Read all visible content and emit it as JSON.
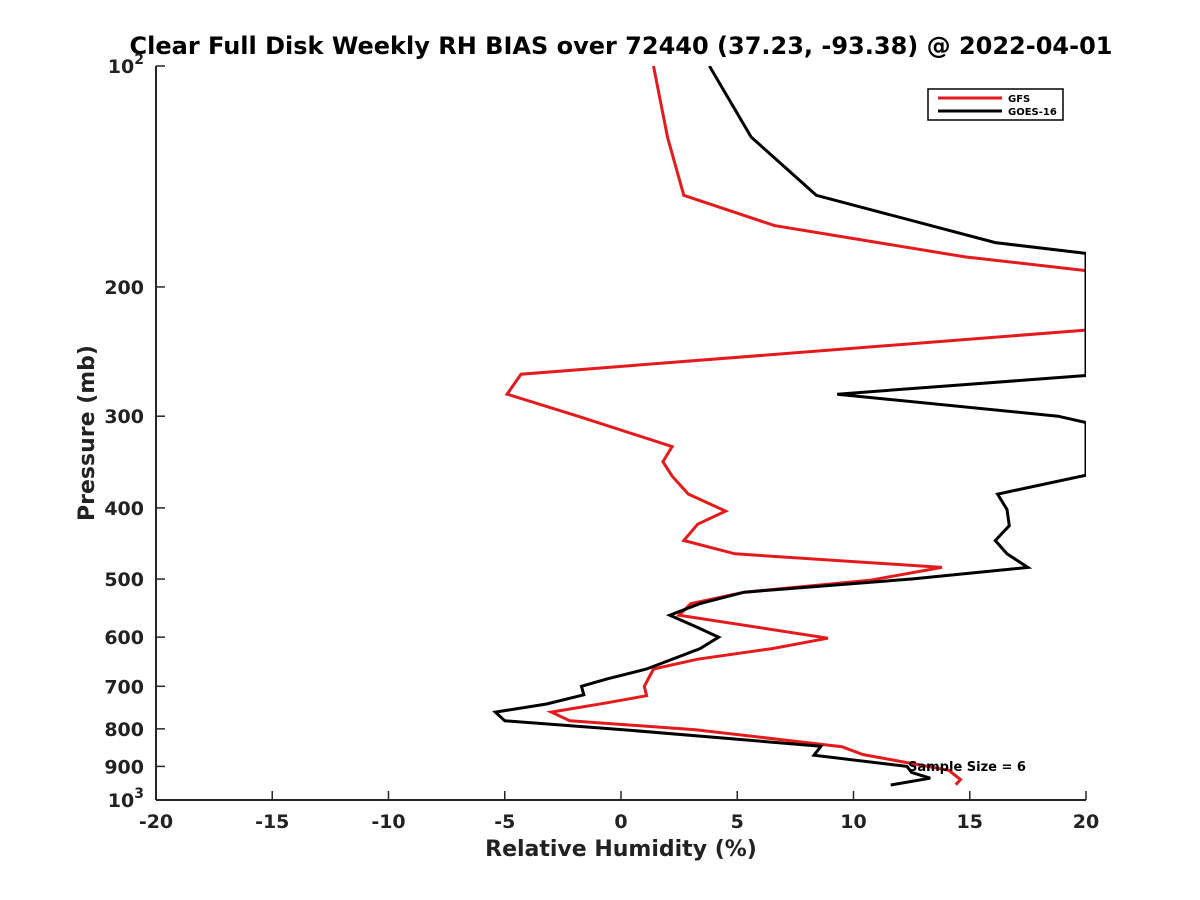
{
  "chart_data": {
    "type": "line",
    "title": "Clear Full Disk Weekly RH BIAS over 72440 (37.23, -93.38) @ 2022-04-01",
    "xlabel": "Relative Humidity (%)",
    "ylabel": "Pressure (mb)",
    "xlim": [
      -20,
      20
    ],
    "ylim": [
      100,
      1000
    ],
    "yscale": "log",
    "y_reversed": true,
    "x_ticks": [
      -20,
      -15,
      -10,
      -5,
      0,
      5,
      10,
      15,
      20
    ],
    "x_tick_labels": [
      "-20",
      "-15",
      "-10",
      "-5",
      "0",
      "5",
      "10",
      "15",
      "20"
    ],
    "y_ticks": [
      100,
      200,
      300,
      400,
      500,
      600,
      700,
      800,
      900,
      1000
    ],
    "y_tick_labels": [
      {
        "base": "10",
        "sup": "2"
      },
      {
        "base": "200",
        "sup": ""
      },
      {
        "base": "300",
        "sup": ""
      },
      {
        "base": "400",
        "sup": ""
      },
      {
        "base": "500",
        "sup": ""
      },
      {
        "base": "600",
        "sup": ""
      },
      {
        "base": "700",
        "sup": ""
      },
      {
        "base": "800",
        "sup": ""
      },
      {
        "base": "900",
        "sup": ""
      },
      {
        "base": "10",
        "sup": "3"
      }
    ],
    "grid": false,
    "legend_position": "top-right",
    "annotation": "Sample Size = 6",
    "series": [
      {
        "name": "GFS",
        "color": "#e41a1c",
        "points": [
          {
            "x": 1.4,
            "y": 100
          },
          {
            "x": 2.0,
            "y": 125
          },
          {
            "x": 2.7,
            "y": 150
          },
          {
            "x": 6.6,
            "y": 165
          },
          {
            "x": 14.8,
            "y": 182
          },
          {
            "x": 20.0,
            "y": 190
          },
          {
            "x": 20.0,
            "y": 229
          },
          {
            "x": -4.3,
            "y": 263
          },
          {
            "x": -4.9,
            "y": 280
          },
          {
            "x": -1.7,
            "y": 301
          },
          {
            "x": 2.2,
            "y": 330
          },
          {
            "x": 1.8,
            "y": 346
          },
          {
            "x": 2.2,
            "y": 362
          },
          {
            "x": 2.9,
            "y": 383
          },
          {
            "x": 4.5,
            "y": 404
          },
          {
            "x": 3.3,
            "y": 421
          },
          {
            "x": 2.7,
            "y": 443
          },
          {
            "x": 4.9,
            "y": 462
          },
          {
            "x": 13.8,
            "y": 482
          },
          {
            "x": 10.7,
            "y": 502
          },
          {
            "x": 5.3,
            "y": 521
          },
          {
            "x": 3.0,
            "y": 540
          },
          {
            "x": 2.5,
            "y": 560
          },
          {
            "x": 8.9,
            "y": 602
          },
          {
            "x": 6.5,
            "y": 622
          },
          {
            "x": 3.3,
            "y": 643
          },
          {
            "x": 1.4,
            "y": 663
          },
          {
            "x": 1.0,
            "y": 700
          },
          {
            "x": 1.1,
            "y": 721
          },
          {
            "x": -0.7,
            "y": 738
          },
          {
            "x": -3.0,
            "y": 759
          },
          {
            "x": -2.2,
            "y": 780
          },
          {
            "x": 3.2,
            "y": 802
          },
          {
            "x": 9.5,
            "y": 846
          },
          {
            "x": 10.4,
            "y": 867
          },
          {
            "x": 14.1,
            "y": 911
          },
          {
            "x": 14.6,
            "y": 938
          },
          {
            "x": 14.4,
            "y": 953
          }
        ]
      },
      {
        "name": "GOES-16",
        "color": "#000000",
        "points": [
          {
            "x": 3.8,
            "y": 100
          },
          {
            "x": 5.6,
            "y": 125
          },
          {
            "x": 8.4,
            "y": 150
          },
          {
            "x": 16.1,
            "y": 174
          },
          {
            "x": 20.0,
            "y": 180
          },
          {
            "x": 20.0,
            "y": 264
          },
          {
            "x": 9.3,
            "y": 280
          },
          {
            "x": 18.8,
            "y": 300
          },
          {
            "x": 20.0,
            "y": 306
          },
          {
            "x": 20.0,
            "y": 361
          },
          {
            "x": 16.2,
            "y": 383
          },
          {
            "x": 16.6,
            "y": 402
          },
          {
            "x": 16.7,
            "y": 423
          },
          {
            "x": 16.1,
            "y": 443
          },
          {
            "x": 16.6,
            "y": 462
          },
          {
            "x": 17.5,
            "y": 482
          },
          {
            "x": 12.5,
            "y": 500
          },
          {
            "x": 5.3,
            "y": 521
          },
          {
            "x": 3.4,
            "y": 540
          },
          {
            "x": 2.1,
            "y": 560
          },
          {
            "x": 3.3,
            "y": 582
          },
          {
            "x": 4.2,
            "y": 600
          },
          {
            "x": 3.4,
            "y": 622
          },
          {
            "x": 1.1,
            "y": 663
          },
          {
            "x": -0.6,
            "y": 684
          },
          {
            "x": -1.7,
            "y": 700
          },
          {
            "x": -1.6,
            "y": 719
          },
          {
            "x": -3.2,
            "y": 740
          },
          {
            "x": -5.4,
            "y": 759
          },
          {
            "x": -5.0,
            "y": 780
          },
          {
            "x": 0.1,
            "y": 802
          },
          {
            "x": 8.6,
            "y": 845
          },
          {
            "x": 8.3,
            "y": 869
          },
          {
            "x": 12.3,
            "y": 900
          },
          {
            "x": 12.5,
            "y": 917
          },
          {
            "x": 13.3,
            "y": 934
          },
          {
            "x": 11.6,
            "y": 954
          }
        ]
      }
    ]
  }
}
